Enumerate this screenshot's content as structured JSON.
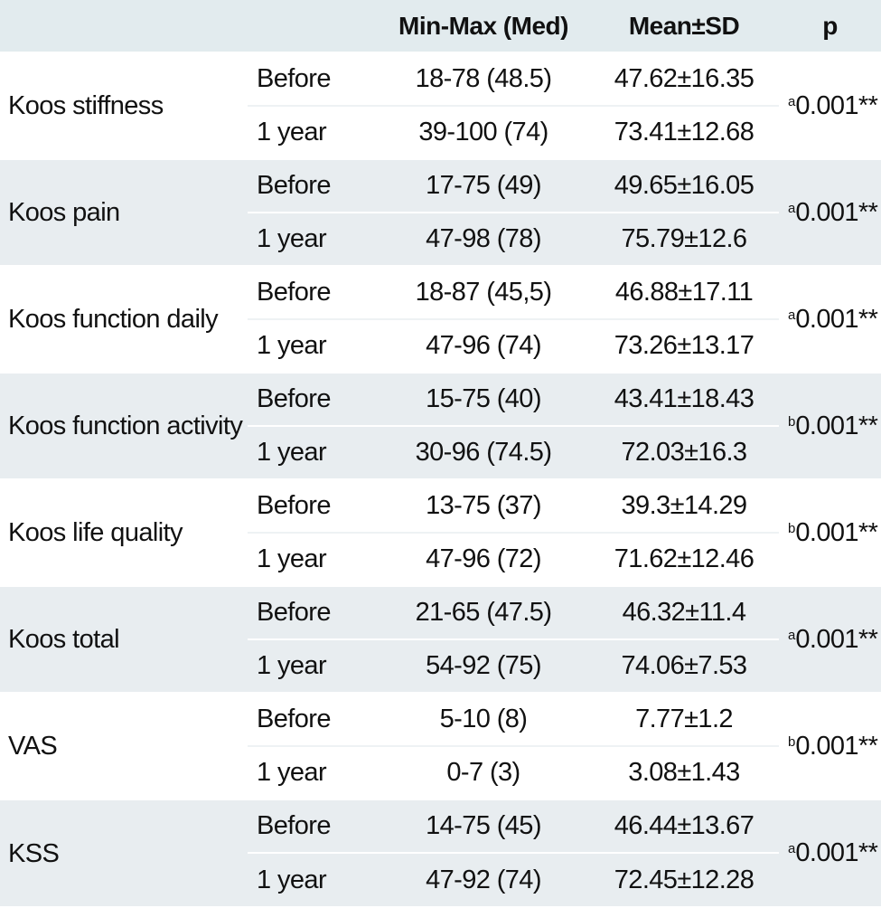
{
  "headers": [
    "",
    "",
    "Min-Max (Med)",
    "Mean±SD",
    "p"
  ],
  "rows": [
    {
      "label": "Koos stiffness",
      "p_mark": "a",
      "p_value": "0.001**",
      "before": {
        "time": "Before",
        "range": "18-78 (48.5)",
        "mean": "47.62±16.35"
      },
      "after": {
        "time": "1 year",
        "range": "39-100 (74)",
        "mean": "73.41±12.68"
      }
    },
    {
      "label": "Koos pain",
      "p_mark": "a",
      "p_value": "0.001**",
      "before": {
        "time": "Before",
        "range": "17-75 (49)",
        "mean": "49.65±16.05"
      },
      "after": {
        "time": "1 year",
        "range": "47-98 (78)",
        "mean": "75.79±12.6"
      }
    },
    {
      "label": "Koos function daily",
      "p_mark": "a",
      "p_value": "0.001**",
      "before": {
        "time": "Before",
        "range": "18-87 (45,5)",
        "mean": "46.88±17.11"
      },
      "after": {
        "time": "1 year",
        "range": "47-96 (74)",
        "mean": "73.26±13.17"
      }
    },
    {
      "label": "Koos  function activity",
      "p_mark": "b",
      "p_value": "0.001**",
      "before": {
        "time": "Before",
        "range": "15-75 (40)",
        "mean": "43.41±18.43"
      },
      "after": {
        "time": "1 year",
        "range": "30-96 (74.5)",
        "mean": "72.03±16.3"
      }
    },
    {
      "label": "Koos life quality",
      "p_mark": "b",
      "p_value": "0.001**",
      "before": {
        "time": "Before",
        "range": "13-75 (37)",
        "mean": "39.3±14.29"
      },
      "after": {
        "time": "1 year",
        "range": "47-96 (72)",
        "mean": "71.62±12.46"
      }
    },
    {
      "label": "Koos total",
      "p_mark": "a",
      "p_value": "0.001**",
      "before": {
        "time": "Before",
        "range": "21-65 (47.5)",
        "mean": "46.32±11.4"
      },
      "after": {
        "time": "1 year",
        "range": "54-92 (75)",
        "mean": "74.06±7.53"
      }
    },
    {
      "label": "VAS",
      "p_mark": "b",
      "p_value": "0.001**",
      "before": {
        "time": "Before",
        "range": "5-10 (8)",
        "mean": "7.77±1.2"
      },
      "after": {
        "time": "1 year",
        "range": "0-7 (3)",
        "mean": "3.08±1.43"
      }
    },
    {
      "label": "KSS",
      "p_mark": "a",
      "p_value": "0.001**",
      "before": {
        "time": "Before",
        "range": "14-75 (45)",
        "mean": "46.44±13.67"
      },
      "after": {
        "time": "1 year",
        "range": "47-92 (74)",
        "mean": "72.45±12.28"
      }
    }
  ]
}
